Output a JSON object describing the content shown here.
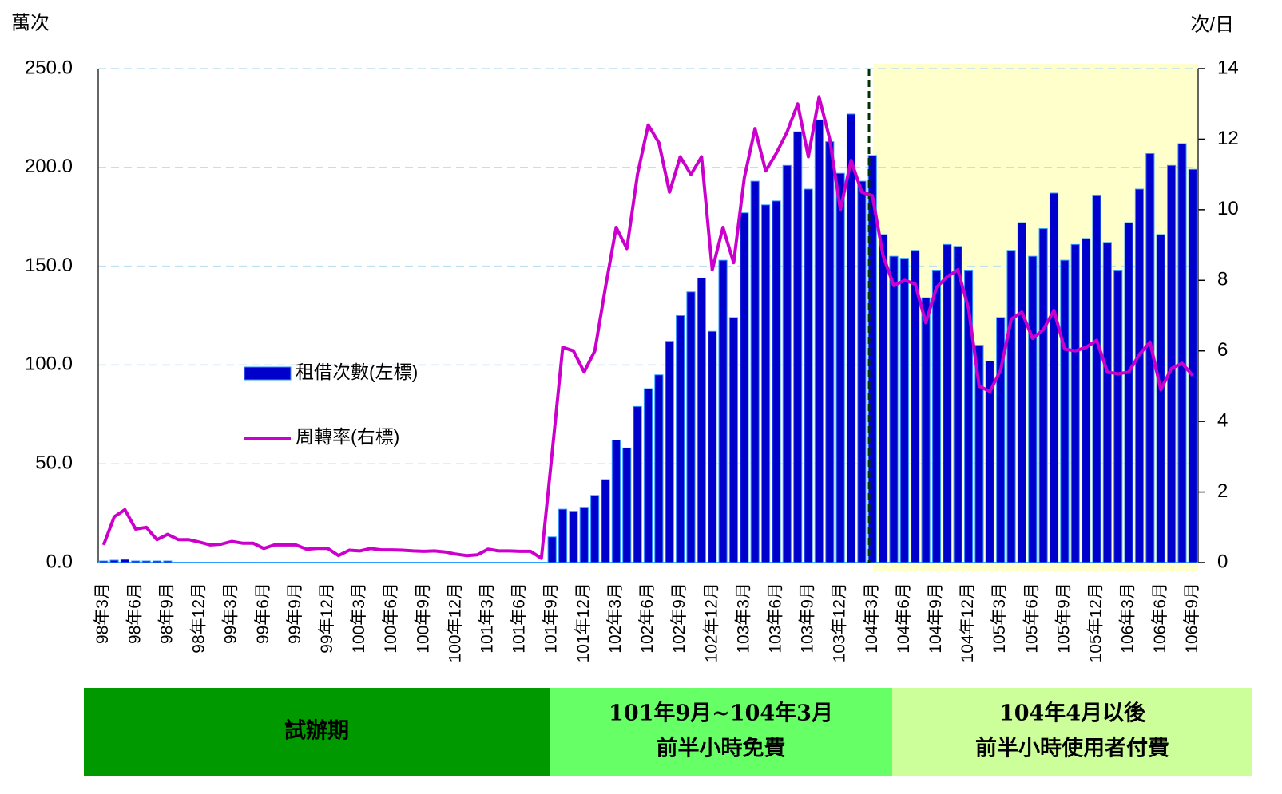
{
  "chart_data": {
    "type": "bar",
    "y_unit_label": "萬次",
    "y2_unit_label": "次/日",
    "categories": [
      "98年3月",
      null,
      null,
      "98年6月",
      null,
      null,
      "98年9月",
      null,
      null,
      "98年12月",
      null,
      null,
      "99年3月",
      null,
      null,
      "99年6月",
      null,
      null,
      "99年9月",
      null,
      null,
      "99年12月",
      null,
      null,
      "100年3月",
      null,
      null,
      "100年6月",
      null,
      null,
      "100年9月",
      null,
      null,
      "100年12月",
      null,
      null,
      "101年3月",
      null,
      null,
      "101年6月",
      null,
      null,
      "101年9月",
      null,
      null,
      "101年12月",
      null,
      null,
      "102年3月",
      null,
      null,
      "102年6月",
      null,
      null,
      "102年9月",
      null,
      null,
      "102年12月",
      null,
      null,
      "103年3月",
      null,
      null,
      "103年6月",
      null,
      null,
      "103年9月",
      null,
      null,
      "103年12月",
      null,
      null,
      "104年3月",
      null,
      null,
      "104年6月",
      null,
      null,
      "104年9月",
      null,
      null,
      "104年12月",
      null,
      null,
      "105年3月",
      null,
      null,
      "105年6月",
      null,
      null,
      "105年9月",
      null,
      null,
      "105年12月",
      null,
      null,
      "106年3月",
      null,
      null,
      "106年6月",
      null,
      null,
      "106年9月"
    ],
    "series": [
      {
        "name": "租借次數(左標)",
        "type": "bar",
        "color": "#0000cc",
        "values": [
          0.8,
          1.2,
          1.6,
          0.8,
          0.8,
          0.8,
          0.8,
          0.1,
          0.1,
          0.1,
          0.1,
          0.1,
          0.1,
          0.1,
          0.1,
          0.1,
          0.1,
          0.1,
          0.1,
          0.1,
          0.1,
          0.1,
          0.1,
          0.1,
          0.1,
          0.1,
          0.1,
          0.1,
          0.1,
          0.1,
          0.1,
          0.1,
          0.1,
          0.1,
          0.1,
          0.1,
          0.1,
          0.1,
          0.1,
          0.1,
          0.1,
          0.1,
          13,
          27,
          26,
          28,
          34,
          42,
          62,
          58,
          79,
          88,
          95,
          112,
          125,
          137,
          144,
          117,
          153,
          124,
          177,
          193,
          181,
          183,
          201,
          218,
          189,
          224,
          213,
          197,
          227,
          193,
          206,
          166,
          155,
          154,
          158,
          134,
          148,
          161,
          160,
          148,
          110,
          102,
          124,
          158,
          172,
          155,
          169,
          187,
          153,
          161,
          164,
          186,
          162,
          148,
          172,
          189,
          207,
          166,
          201,
          212,
          199
        ]
      },
      {
        "name": "周轉率(右標)",
        "type": "line",
        "color": "#cc00cc",
        "axis": "y2",
        "values": [
          0.5,
          1.3,
          1.5,
          0.95,
          1.0,
          0.65,
          0.8,
          0.65,
          0.65,
          0.58,
          0.5,
          0.52,
          0.6,
          0.55,
          0.55,
          0.4,
          0.5,
          0.5,
          0.5,
          0.38,
          0.4,
          0.4,
          0.2,
          0.35,
          0.33,
          0.4,
          0.36,
          0.36,
          0.35,
          0.33,
          0.32,
          0.33,
          0.3,
          0.24,
          0.2,
          0.22,
          0.38,
          0.33,
          0.33,
          0.32,
          0.32,
          0.12,
          3.1,
          6.1,
          6.0,
          5.4,
          6.0,
          7.8,
          9.5,
          8.9,
          11,
          12.4,
          11.9,
          10.5,
          11.5,
          11,
          11.5,
          8.3,
          9.5,
          8.5,
          10.9,
          12.3,
          11.1,
          11.6,
          12.2,
          13.0,
          11.5,
          13.2,
          12.0,
          10.0,
          11.4,
          10.5,
          10.4,
          8.7,
          7.85,
          8.0,
          7.9,
          6.8,
          7.8,
          8.1,
          8.3,
          7.2,
          5.0,
          4.85,
          5.45,
          6.9,
          7.1,
          6.35,
          6.6,
          7.15,
          6.05,
          6.0,
          6.1,
          6.3,
          5.4,
          5.35,
          5.4,
          5.9,
          6.25,
          4.9,
          5.5,
          5.65,
          5.3
        ]
      }
    ],
    "ylim": [
      0,
      250
    ],
    "yticks": [
      {
        "value": 0,
        "label": "0.0"
      },
      {
        "value": 50,
        "label": "50.0"
      },
      {
        "value": 100,
        "label": "100.0"
      },
      {
        "value": 150,
        "label": "150.0"
      },
      {
        "value": 200,
        "label": "200.0"
      },
      {
        "value": 250,
        "label": "250.0"
      }
    ],
    "y2lim": [
      0,
      14
    ],
    "y2ticks": [
      0,
      2,
      4,
      6,
      8,
      10,
      12,
      14
    ],
    "grid": true,
    "periods": [
      {
        "lines": [
          "試辦期"
        ],
        "color": "#009900"
      },
      {
        "lines": [
          "101年9月~104年3月",
          "前半小時免費"
        ],
        "color": "#66ff66"
      },
      {
        "lines": [
          "104年4月以後",
          "前半小時使用者付費"
        ],
        "color": "#ccff99"
      }
    ]
  }
}
